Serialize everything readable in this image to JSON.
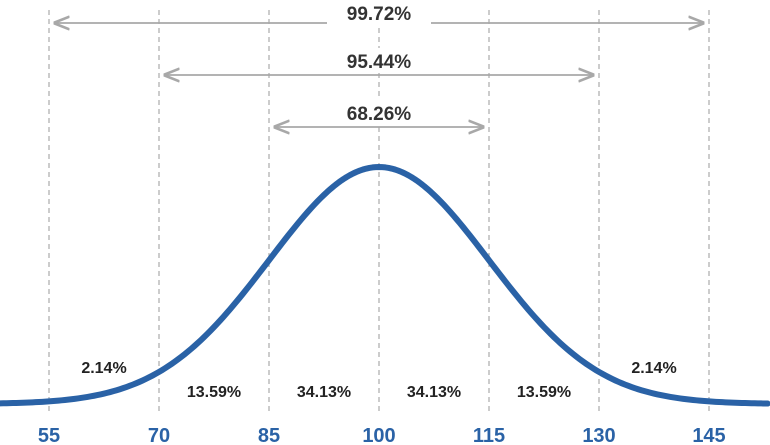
{
  "chart_data": {
    "type": "line",
    "title": "",
    "xlabel": "",
    "ylabel": "",
    "distribution": {
      "mean": 100,
      "sd": 15
    },
    "x_ticks": [
      "55",
      "70",
      "85",
      "100",
      "115",
      "130",
      "145"
    ],
    "x_range": [
      47,
      153
    ],
    "region_labels": [
      {
        "x": 62.5,
        "label": "2.14%",
        "row": "upper"
      },
      {
        "x": 77.5,
        "label": "13.59%",
        "row": "lower"
      },
      {
        "x": 92.5,
        "label": "34.13%",
        "row": "lower"
      },
      {
        "x": 107.5,
        "label": "34.13%",
        "row": "lower"
      },
      {
        "x": 122.5,
        "label": "13.59%",
        "row": "lower"
      },
      {
        "x": 137.5,
        "label": "2.14%",
        "row": "upper"
      }
    ],
    "ranges": [
      {
        "from": 85,
        "to": 115,
        "label": "68.26%"
      },
      {
        "from": 70,
        "to": 130,
        "label": "95.44%"
      },
      {
        "from": 55,
        "to": 145,
        "label": "99.72%"
      }
    ],
    "grid": true,
    "legend": "none"
  },
  "colors": {
    "curve": "#2a62a6",
    "tick_text": "#2a62a6",
    "arrow": "#a8a8a8",
    "grid": "#b0b0b0",
    "text": "#222222"
  }
}
